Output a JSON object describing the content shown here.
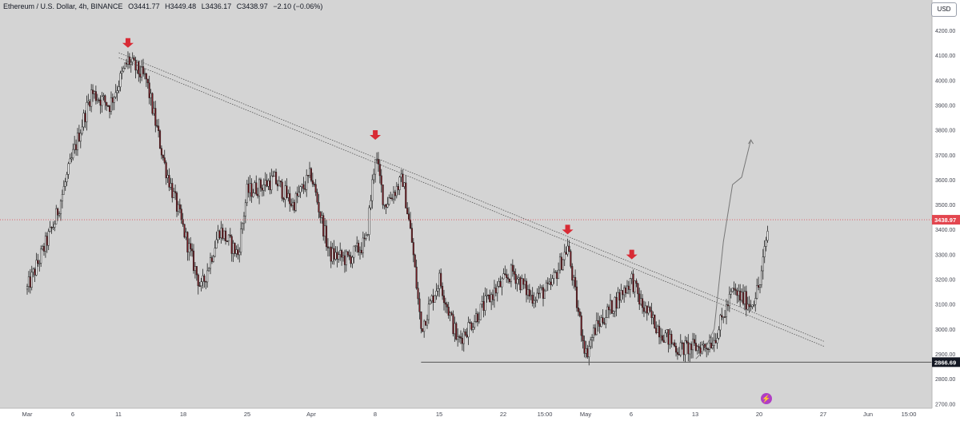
{
  "header": {
    "symbol": "Ethereum / U.S. Dollar, 4h, BINANCE",
    "open": "O3441.77",
    "high": "H3449.48",
    "low": "L3436.17",
    "close": "C3438.97",
    "change": "−2.10 (−0.06%)"
  },
  "currency_button": "USD",
  "current_price_label": "3438.97",
  "support_price_label": "2866.69",
  "chart_data": {
    "type": "candlestick",
    "title": "",
    "xlabel": "",
    "ylabel": "",
    "ylim": [
      2670,
      4280
    ],
    "grid": false,
    "y_ticks": [
      "4200.00",
      "4100.00",
      "4000.00",
      "3900.00",
      "3800.00",
      "3700.00",
      "3600.00",
      "3500.00",
      "3400.00",
      "3300.00",
      "3200.00",
      "3100.00",
      "3000.00",
      "2900.00",
      "2800.00",
      "2700.00"
    ],
    "x_ticks": [
      "Mar",
      "6",
      "11",
      "18",
      "25",
      "Apr",
      "8",
      "15",
      "22",
      "15:00",
      "May",
      "6",
      "13",
      "20",
      "27",
      "Jun",
      "15:00"
    ],
    "price_path": [
      {
        "t": "Mar 1",
        "p": 3160
      },
      {
        "t": "Mar 4",
        "p": 3430
      },
      {
        "t": "Mar 6",
        "p": 3700
      },
      {
        "t": "Mar 8",
        "p": 3950
      },
      {
        "t": "Mar 10",
        "p": 3900
      },
      {
        "t": "Mar 12",
        "p": 4080
      },
      {
        "t": "Mar 14",
        "p": 4000
      },
      {
        "t": "Mar 16",
        "p": 3660
      },
      {
        "t": "Mar 19",
        "p": 3280
      },
      {
        "t": "Mar 20",
        "p": 3160
      },
      {
        "t": "Mar 22",
        "p": 3400
      },
      {
        "t": "Mar 24",
        "p": 3300
      },
      {
        "t": "Mar 25",
        "p": 3550
      },
      {
        "t": "Mar 28",
        "p": 3600
      },
      {
        "t": "Mar 30",
        "p": 3500
      },
      {
        "t": "Apr 1",
        "p": 3620
      },
      {
        "t": "Apr 3",
        "p": 3300
      },
      {
        "t": "Apr 5",
        "p": 3280
      },
      {
        "t": "Apr 7",
        "p": 3350
      },
      {
        "t": "Apr 8",
        "p": 3700
      },
      {
        "t": "Apr 9",
        "p": 3500
      },
      {
        "t": "Apr 11",
        "p": 3600
      },
      {
        "t": "Apr 12",
        "p": 3350
      },
      {
        "t": "Apr 13",
        "p": 3000
      },
      {
        "t": "Apr 15",
        "p": 3200
      },
      {
        "t": "Apr 17",
        "p": 2950
      },
      {
        "t": "Apr 19",
        "p": 3050
      },
      {
        "t": "Apr 21",
        "p": 3150
      },
      {
        "t": "Apr 23",
        "p": 3230
      },
      {
        "t": "Apr 25",
        "p": 3130
      },
      {
        "t": "Apr 27",
        "p": 3160
      },
      {
        "t": "Apr 29",
        "p": 3330
      },
      {
        "t": "Apr 30",
        "p": 3100
      },
      {
        "t": "May 1",
        "p": 2900
      },
      {
        "t": "May 2",
        "p": 3000
      },
      {
        "t": "May 4",
        "p": 3100
      },
      {
        "t": "May 6",
        "p": 3200
      },
      {
        "t": "May 7",
        "p": 3100
      },
      {
        "t": "May 9",
        "p": 3000
      },
      {
        "t": "May 11",
        "p": 2920
      },
      {
        "t": "May 14",
        "p": 2930
      },
      {
        "t": "May 15",
        "p": 2960
      },
      {
        "t": "May 16",
        "p": 3050
      },
      {
        "t": "May 17",
        "p": 3150
      },
      {
        "t": "May 19",
        "p": 3100
      },
      {
        "t": "May 20",
        "p": 3180
      },
      {
        "t": "May 21",
        "p": 3440
      }
    ],
    "high_low": {
      "high": 4093,
      "high_date": "Mar 12",
      "low": 2820,
      "low_date": "May 1"
    },
    "trendlines": [
      {
        "from": {
          "t": "Mar 11",
          "p": 4110
        },
        "to": {
          "t": "May 27",
          "p": 2950
        }
      },
      {
        "from": {
          "t": "Mar 11",
          "p": 4090
        },
        "to": {
          "t": "May 27",
          "p": 2930
        }
      }
    ],
    "support_line": {
      "price": 2866.69,
      "from": "Apr 13"
    },
    "current_price": 3438.97,
    "arrows": [
      {
        "t": "Mar 12",
        "p": 4130
      },
      {
        "t": "Apr 8",
        "p": 3760
      },
      {
        "t": "Apr 29",
        "p": 3380
      },
      {
        "t": "May 6",
        "p": 3280
      }
    ],
    "projection_path": [
      {
        "t": "May 13",
        "p": 2880
      },
      {
        "t": "May 14",
        "p": 2920
      },
      {
        "t": "May 15",
        "p": 3000
      },
      {
        "t": "May 16",
        "p": 3350
      },
      {
        "t": "May 17",
        "p": 3580
      },
      {
        "t": "May 18",
        "p": 3610
      },
      {
        "t": "May 19",
        "p": 3760
      }
    ],
    "colors": {
      "up": "#ffffff",
      "down": "#7a1b22",
      "wick": "#222222",
      "arrow": "#d82b35",
      "price_line": "#e0505a",
      "support": "#555555",
      "trend": "#555555",
      "projection": "#777777"
    }
  }
}
